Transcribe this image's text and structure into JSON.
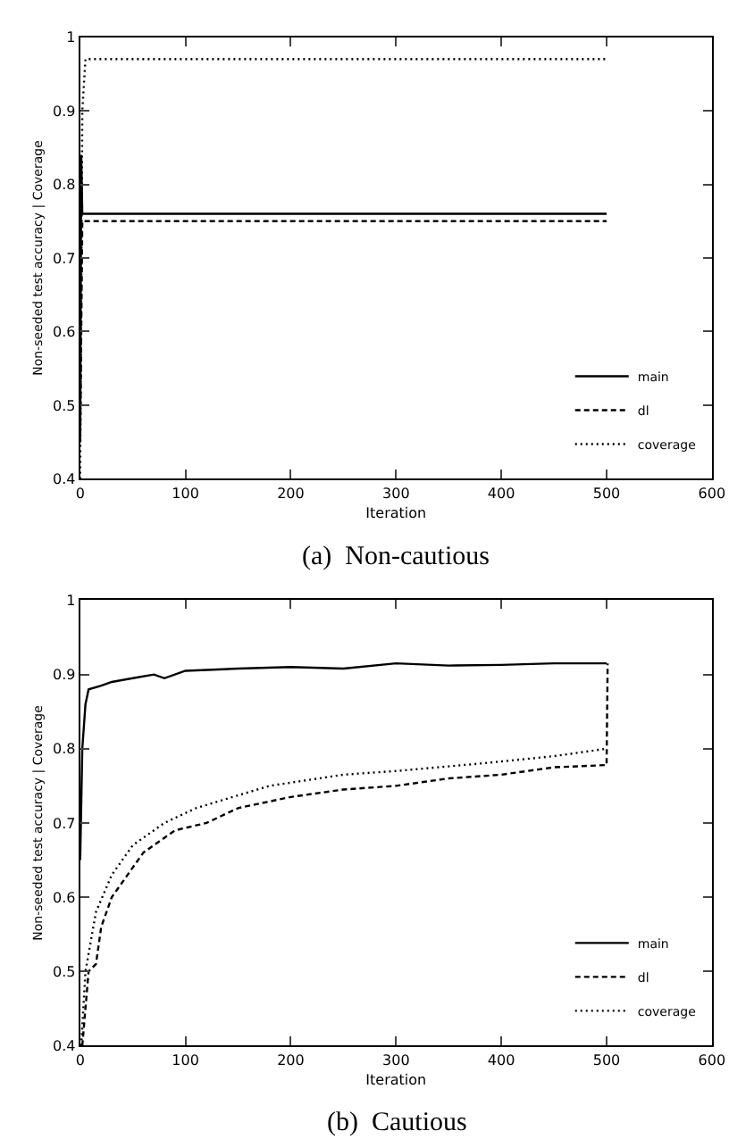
{
  "chart_data": [
    {
      "type": "line",
      "title": "(a)  Non-cautious",
      "xlabel": "Iteration",
      "ylabel": "Non-seeded test accuracy | Coverage",
      "xlim": [
        0,
        600
      ],
      "xticks": [
        0,
        100,
        200,
        300,
        400,
        500,
        600
      ],
      "ylim": [
        0.4,
        1
      ],
      "yticks": [
        0.4,
        0.5,
        0.6,
        0.7,
        0.8,
        0.9,
        1
      ],
      "legend": "bottom right",
      "marker": "none",
      "series": [
        {
          "name": "main",
          "color": "#000000",
          "line_style": "solid",
          "x": [
            0,
            1,
            2,
            500
          ],
          "values": [
            0.45,
            0.84,
            0.76,
            0.76
          ]
        },
        {
          "name": "dl",
          "color": "#000000",
          "line_style": "dashed",
          "x": [
            0,
            2,
            500
          ],
          "values": [
            0.45,
            0.75,
            0.75
          ]
        },
        {
          "name": "coverage",
          "color": "#000000",
          "line_style": "dotted",
          "x": [
            0,
            2,
            5,
            500
          ],
          "values": [
            0.4,
            0.9,
            0.97,
            0.97
          ]
        }
      ]
    },
    {
      "type": "line",
      "title": "(b)  Cautious",
      "xlabel": "Iteration",
      "ylabel": "Non-seeded test accuracy | Coverage",
      "xlim": [
        0,
        600
      ],
      "xticks": [
        0,
        100,
        200,
        300,
        400,
        500,
        600
      ],
      "ylim": [
        0.4,
        1
      ],
      "yticks": [
        0.4,
        0.5,
        0.6,
        0.7,
        0.8,
        0.9,
        1
      ],
      "legend": "bottom right",
      "marker": "none",
      "series": [
        {
          "name": "main",
          "color": "#000000",
          "line_style": "solid",
          "x": [
            0,
            2,
            5,
            8,
            20,
            30,
            50,
            70,
            80,
            100,
            150,
            200,
            250,
            300,
            350,
            400,
            450,
            500
          ],
          "values": [
            0.65,
            0.8,
            0.86,
            0.88,
            0.885,
            0.89,
            0.895,
            0.9,
            0.895,
            0.905,
            0.908,
            0.91,
            0.908,
            0.915,
            0.912,
            0.913,
            0.915,
            0.915
          ]
        },
        {
          "name": "dl",
          "color": "#000000",
          "line_style": "dashed",
          "x": [
            2,
            8,
            15,
            20,
            30,
            45,
            60,
            90,
            120,
            150,
            200,
            250,
            300,
            350,
            400,
            450,
            500,
            501
          ],
          "values": [
            0.4,
            0.5,
            0.51,
            0.56,
            0.6,
            0.63,
            0.66,
            0.69,
            0.7,
            0.72,
            0.735,
            0.745,
            0.75,
            0.76,
            0.765,
            0.775,
            0.778,
            0.915
          ]
        },
        {
          "name": "coverage",
          "color": "#000000",
          "line_style": "dotted",
          "x": [
            1,
            5,
            15,
            30,
            50,
            80,
            110,
            180,
            250,
            300,
            380,
            450,
            500
          ],
          "values": [
            0.4,
            0.5,
            0.58,
            0.63,
            0.67,
            0.7,
            0.72,
            0.75,
            0.765,
            0.77,
            0.78,
            0.79,
            0.8
          ]
        }
      ]
    }
  ]
}
